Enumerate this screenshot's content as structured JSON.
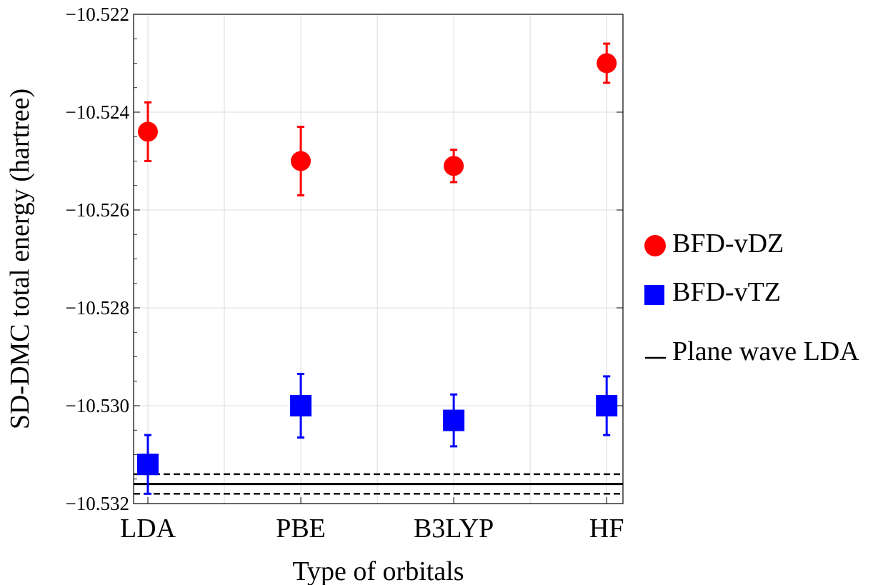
{
  "chart_data": {
    "type": "scatter",
    "categories": [
      "LDA",
      "PBE",
      "B3LYP",
      "HF"
    ],
    "xlabel": "Type of orbitals",
    "ylabel": "SD-DMC total energy (hartree)",
    "ylim": [
      -10.532,
      -10.522
    ],
    "yticks": [
      -10.532,
      -10.53,
      -10.528,
      -10.526,
      -10.524,
      -10.522
    ],
    "ytick_labels": [
      "−10.532",
      "−10.530",
      "−10.528",
      "−10.526",
      "−10.524",
      "−10.522"
    ],
    "grid": true,
    "legend_position": "right",
    "series": [
      {
        "name": "BFD-vDZ",
        "marker": "circle",
        "color": "#ff0000",
        "values": [
          -10.5244,
          -10.525,
          -10.5251,
          -10.523
        ],
        "errors": [
          0.0006,
          0.0007,
          0.00033,
          0.0004
        ]
      },
      {
        "name": "BFD-vTZ",
        "marker": "square",
        "color": "#0000ff",
        "values": [
          -10.5312,
          -10.53,
          -10.5303,
          -10.53
        ],
        "errors": [
          0.0006,
          0.00065,
          0.00053,
          0.0006
        ]
      }
    ],
    "reference": {
      "name": "Plane wave LDA",
      "color": "#000000",
      "value": -10.5316,
      "error": 0.0002
    }
  }
}
